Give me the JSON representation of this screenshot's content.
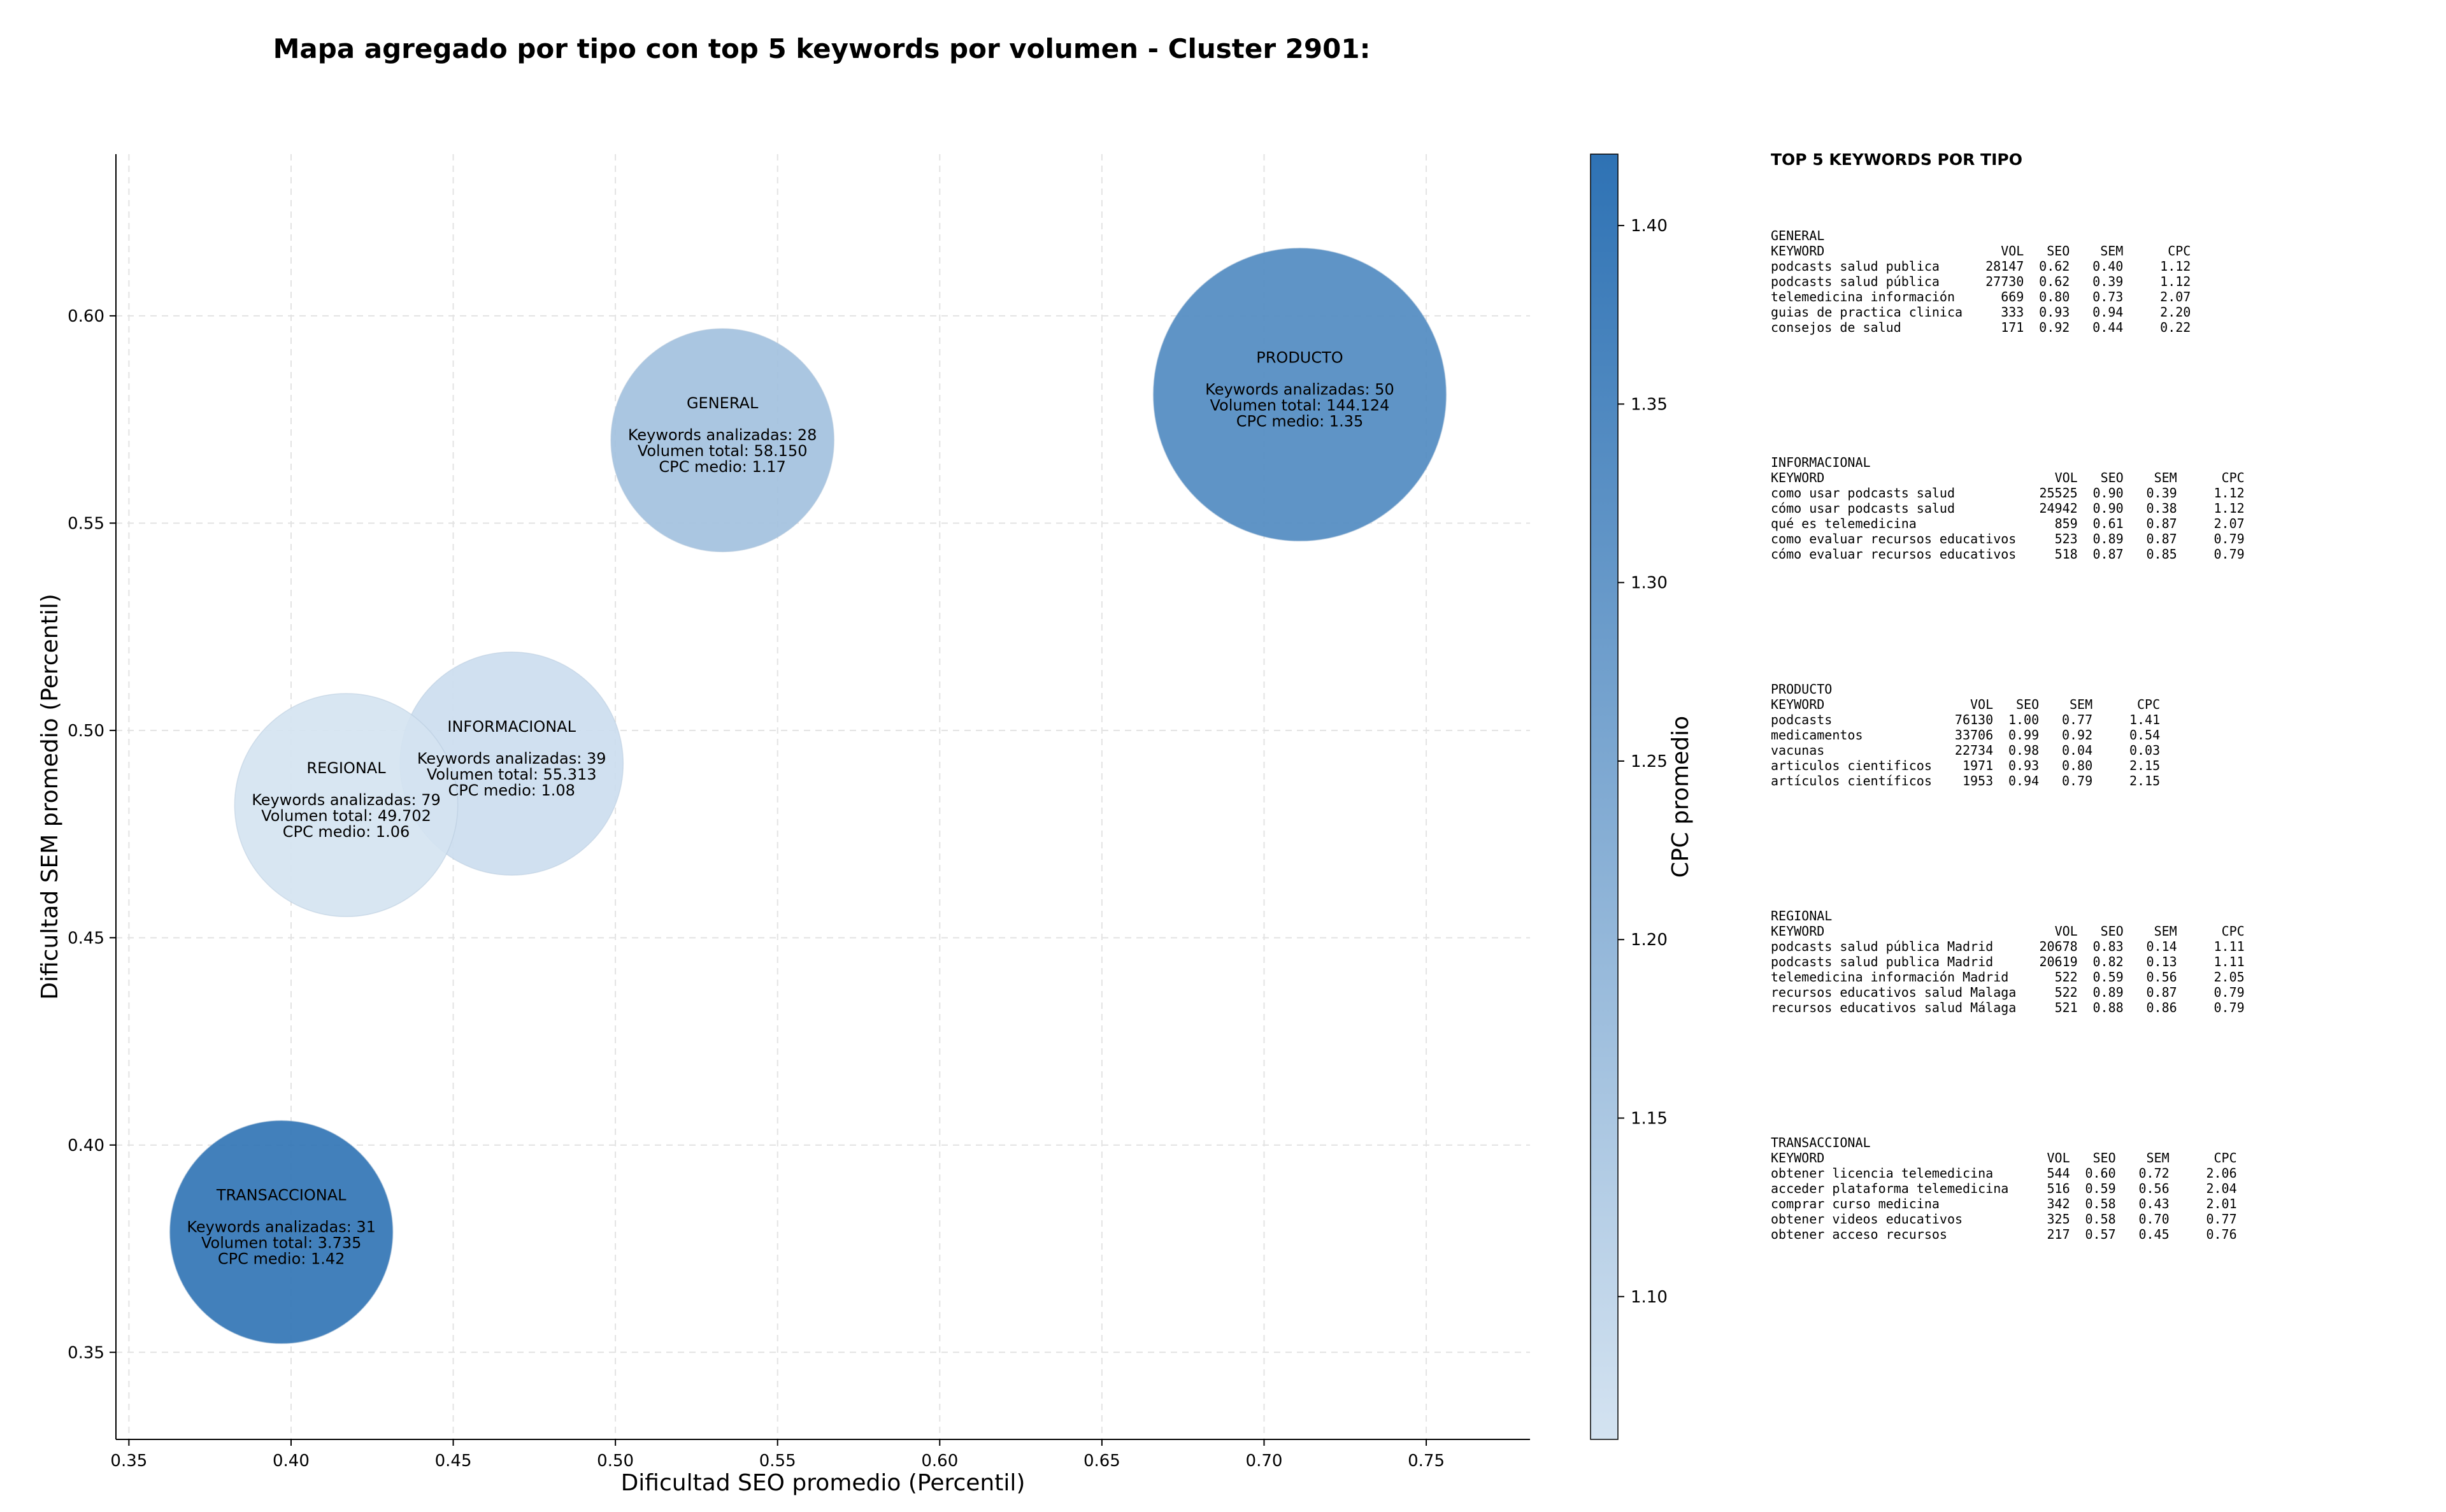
{
  "chart_data": {
    "type": "scatter",
    "title": "Mapa agregado por tipo con top 5 keywords por volumen - Cluster 2901:",
    "xlabel": "Dificultad SEO promedio (Percentil)",
    "ylabel": "Dificultad SEM promedio (Percentil)",
    "xlim": [
      0.346,
      0.782
    ],
    "ylim": [
      0.329,
      0.639
    ],
    "xticks": [
      "0.35",
      "0.40",
      "0.45",
      "0.50",
      "0.55",
      "0.60",
      "0.65",
      "0.70",
      "0.75"
    ],
    "yticks": [
      "0.35",
      "0.40",
      "0.45",
      "0.50",
      "0.55",
      "0.60"
    ],
    "grid": true,
    "colorbar": {
      "label": "CPC promedio",
      "range": [
        1.06,
        1.42
      ],
      "ticks": [
        "1.10",
        "1.15",
        "1.20",
        "1.25",
        "1.30",
        "1.35",
        "1.40"
      ]
    },
    "points": [
      {
        "name": "GENERAL",
        "x": 0.533,
        "y": 0.57,
        "cpc": 1.17,
        "volume": 58150,
        "line1": "Keywords analizadas: 28",
        "line2": "Volumen total: 58.150",
        "line3": "CPC medio: 1.17"
      },
      {
        "name": "PRODUCTO",
        "x": 0.711,
        "y": 0.581,
        "cpc": 1.35,
        "volume": 144124,
        "line1": "Keywords analizadas: 50",
        "line2": "Volumen total: 144.124",
        "line3": "CPC medio: 1.35"
      },
      {
        "name": "INFORMACIONAL",
        "x": 0.468,
        "y": 0.492,
        "cpc": 1.08,
        "volume": 55313,
        "line1": "Keywords analizadas: 39",
        "line2": "Volumen total: 55.313",
        "line3": "CPC medio: 1.08"
      },
      {
        "name": "REGIONAL",
        "x": 0.417,
        "y": 0.482,
        "cpc": 1.06,
        "volume": 49702,
        "line1": "Keywords analizadas: 79",
        "line2": "Volumen total: 49.702",
        "line3": "CPC medio: 1.06"
      },
      {
        "name": "TRANSACCIONAL",
        "x": 0.397,
        "y": 0.379,
        "cpc": 1.42,
        "volume": 3735,
        "line1": "Keywords analizadas: 31",
        "line2": "Volumen total: 3.735",
        "line3": "CPC medio: 1.42"
      }
    ]
  },
  "top_panel": {
    "heading": "TOP 5 KEYWORDS POR TIPO",
    "header_cols": [
      "KEYWORD",
      "VOL",
      "SEO",
      "SEM",
      "CPC"
    ],
    "groups": [
      {
        "type": "GENERAL",
        "rows": [
          [
            "podcasts salud publica",
            "28147",
            "0.62",
            "0.40",
            "1.12"
          ],
          [
            "podcasts salud pública",
            "27730",
            "0.62",
            "0.39",
            "1.12"
          ],
          [
            "telemedicina información",
            "669",
            "0.80",
            "0.73",
            "2.07"
          ],
          [
            "guias de practica clinica",
            "333",
            "0.93",
            "0.94",
            "2.20"
          ],
          [
            "consejos de salud",
            "171",
            "0.92",
            "0.44",
            "0.22"
          ]
        ]
      },
      {
        "type": "INFORMACIONAL",
        "rows": [
          [
            "como usar podcasts salud",
            "25525",
            "0.90",
            "0.39",
            "1.12"
          ],
          [
            "cómo usar podcasts salud",
            "24942",
            "0.90",
            "0.38",
            "1.12"
          ],
          [
            "qué es telemedicina",
            "859",
            "0.61",
            "0.87",
            "2.07"
          ],
          [
            "como evaluar recursos educativos",
            "523",
            "0.89",
            "0.87",
            "0.79"
          ],
          [
            "cómo evaluar recursos educativos",
            "518",
            "0.87",
            "0.85",
            "0.79"
          ]
        ]
      },
      {
        "type": "PRODUCTO",
        "rows": [
          [
            "podcasts",
            "76130",
            "1.00",
            "0.77",
            "1.41"
          ],
          [
            "medicamentos",
            "33706",
            "0.99",
            "0.92",
            "0.54"
          ],
          [
            "vacunas",
            "22734",
            "0.98",
            "0.04",
            "0.03"
          ],
          [
            "articulos cientificos",
            "1971",
            "0.93",
            "0.80",
            "2.15"
          ],
          [
            "artículos científicos",
            "1953",
            "0.94",
            "0.79",
            "2.15"
          ]
        ]
      },
      {
        "type": "REGIONAL",
        "rows": [
          [
            "podcasts salud pública Madrid",
            "20678",
            "0.83",
            "0.14",
            "1.11"
          ],
          [
            "podcasts salud publica Madrid",
            "20619",
            "0.82",
            "0.13",
            "1.11"
          ],
          [
            "telemedicina información Madrid",
            "522",
            "0.59",
            "0.56",
            "2.05"
          ],
          [
            "recursos educativos salud Malaga",
            "522",
            "0.89",
            "0.87",
            "0.79"
          ],
          [
            "recursos educativos salud Málaga",
            "521",
            "0.88",
            "0.86",
            "0.79"
          ]
        ]
      },
      {
        "type": "TRANSACCIONAL",
        "rows": [
          [
            "obtener licencia telemedicina",
            "544",
            "0.60",
            "0.72",
            "2.06"
          ],
          [
            "acceder plataforma telemedicina",
            "516",
            "0.59",
            "0.56",
            "2.04"
          ],
          [
            "comprar curso medicina",
            "342",
            "0.58",
            "0.43",
            "2.01"
          ],
          [
            "obtener videos educativos",
            "325",
            "0.58",
            "0.70",
            "0.77"
          ],
          [
            "obtener acceso recursos",
            "217",
            "0.57",
            "0.45",
            "0.76"
          ]
        ]
      }
    ]
  },
  "colors": {
    "cmap_low": "#d4e3f1",
    "cmap_high": "#2e72b4",
    "grid": "#e3e3e3",
    "axis": "#000000"
  }
}
